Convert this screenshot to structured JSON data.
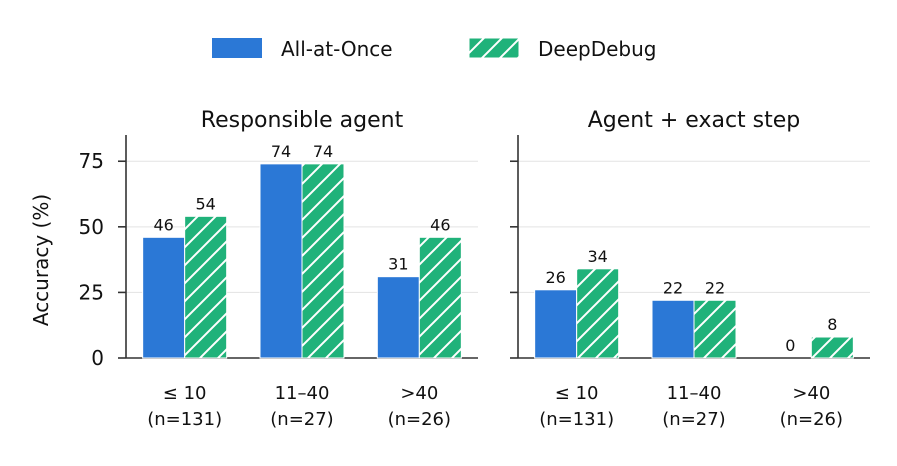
{
  "legend": {
    "items": [
      {
        "label": "All-at-Once",
        "color": "#2b78d6",
        "pattern": "solid"
      },
      {
        "label": "DeepDebug",
        "color": "#20b27a",
        "pattern": "hatch"
      }
    ]
  },
  "chart_data": [
    {
      "type": "bar",
      "title": "Responsible agent",
      "ylabel": "Accuracy (%)",
      "xlabel": "",
      "ylim": [
        0,
        85
      ],
      "yticks": [
        0,
        25,
        50,
        75
      ],
      "grid": true,
      "categories": [
        "≤ 10\n(n=131)",
        "11–40\n(n=27)",
        ">40\n(n=26)"
      ],
      "series": [
        {
          "name": "All-at-Once",
          "values": [
            46,
            74,
            31
          ]
        },
        {
          "name": "DeepDebug",
          "values": [
            54,
            74,
            46
          ]
        }
      ]
    },
    {
      "type": "bar",
      "title": "Agent + exact step",
      "ylabel": "",
      "xlabel": "",
      "ylim": [
        0,
        85
      ],
      "yticks": [
        0,
        25,
        50,
        75
      ],
      "grid": true,
      "categories": [
        "≤ 10\n(n=131)",
        "11–40\n(n=27)",
        ">40\n(n=26)"
      ],
      "series": [
        {
          "name": "All-at-Once",
          "values": [
            26,
            22,
            0
          ]
        },
        {
          "name": "DeepDebug",
          "values": [
            34,
            22,
            8
          ]
        }
      ]
    }
  ]
}
